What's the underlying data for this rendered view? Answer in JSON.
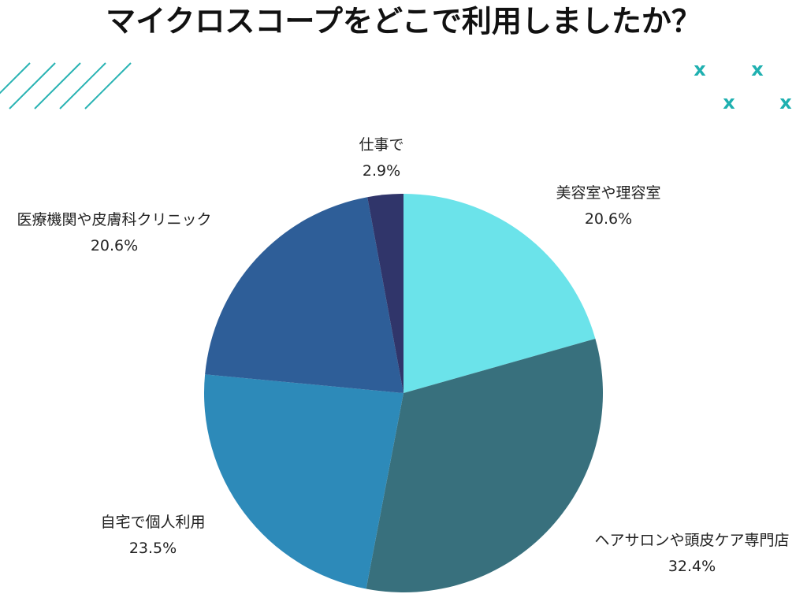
{
  "chart_data": {
    "type": "pie",
    "title": "マイクロスコープをどこで利用しましたか？",
    "slices": [
      {
        "name": "美容室や理容室",
        "value": 20.6,
        "value_label": "20.6%",
        "color": "#6BE3EA"
      },
      {
        "name": "ヘアサロンや頭皮ケア専門店",
        "value": 32.4,
        "value_label": "32.4%",
        "color": "#38707D"
      },
      {
        "name": "自宅で個人利用",
        "value": 23.5,
        "value_label": "23.5%",
        "color": "#2D8AB9"
      },
      {
        "name": "医療機関や皮膚科クリニック",
        "value": 20.6,
        "value_label": "20.6%",
        "color": "#2E5E98"
      },
      {
        "name": "仕事で",
        "value": 2.9,
        "value_label": "2.9%",
        "color": "#30356A"
      }
    ],
    "start_angle": "12 o'clock",
    "direction": "clockwise",
    "legend": "none"
  },
  "decorations": {
    "stripe_color": "#29B3B3",
    "x_mark_color": "#1FB0B0",
    "x_mark_glyph": "x"
  }
}
